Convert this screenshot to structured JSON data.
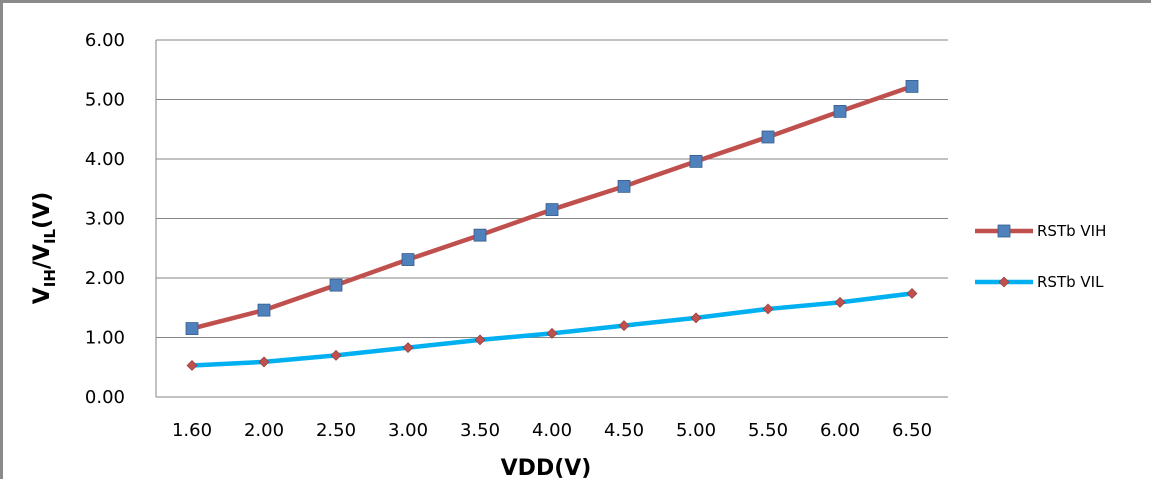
{
  "chart_data": {
    "type": "line",
    "categories": [
      "1.60",
      "2.00",
      "2.50",
      "3.00",
      "3.50",
      "4.00",
      "4.50",
      "5.00",
      "5.50",
      "6.00",
      "6.50"
    ],
    "series": [
      {
        "name": "RSTb VIH",
        "values": [
          1.15,
          1.46,
          1.88,
          2.31,
          2.72,
          3.15,
          3.54,
          3.96,
          4.37,
          4.8,
          5.22
        ],
        "line_color": "#c0504d",
        "marker": "square",
        "marker_color": "#4f81bd"
      },
      {
        "name": "RSTb VIL",
        "values": [
          0.53,
          0.59,
          0.7,
          0.83,
          0.96,
          1.07,
          1.2,
          1.33,
          1.48,
          1.59,
          1.74
        ],
        "line_color": "#00b0f0",
        "marker": "diamond",
        "marker_color": "#c0504d"
      }
    ],
    "ylim": [
      0,
      6
    ],
    "yticks": [
      "0.00",
      "1.00",
      "2.00",
      "3.00",
      "4.00",
      "5.00",
      "6.00"
    ],
    "xlabel": "VDD(V)",
    "ylabel": {
      "main1": "V",
      "sub1": "IH",
      "sep": "/V",
      "sub2": "IL",
      "tail": "(V)"
    },
    "grid": "horizontal",
    "legend_position": "right"
  }
}
